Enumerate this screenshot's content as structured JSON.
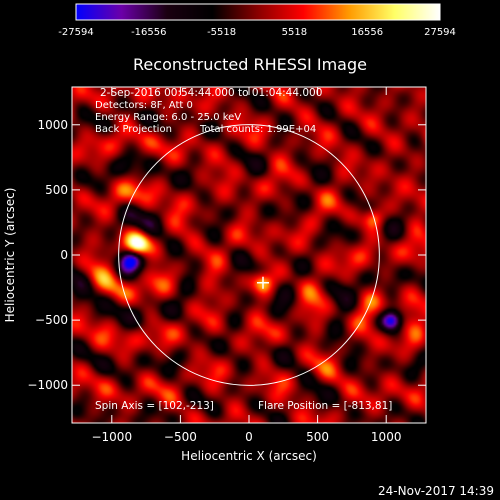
{
  "chart_data": {
    "type": "heatmap",
    "title": "Reconstructed RHESSI Image",
    "colorbar": {
      "ticks": [
        "-27594",
        "-16556",
        "-5518",
        "5518",
        "16556",
        "27594"
      ],
      "vmin": -27594,
      "vmax": 27594,
      "colormap": [
        "#0000ff",
        "#6b00a8",
        "#1a0010",
        "#000000",
        "#8a0000",
        "#ff0000",
        "#ff9a00",
        "#ffff66",
        "#ffffff"
      ]
    },
    "info": {
      "time": "2-Sep-2016 00:54:44.000 to 01:04:44.000",
      "detectors": "Detectors: 8F, Att 0",
      "energy": "Energy Range: 6.0 - 25.0 keV",
      "method": "Back Projection",
      "counts": "Total counts: 1.99E+04"
    },
    "xlabel": "Heliocentric X (arcsec)",
    "ylabel": "Heliocentric Y (arcsec)",
    "xlim": [
      -1290,
      1290
    ],
    "ylim": [
      -1290,
      1290
    ],
    "xticks": [
      -1000,
      -500,
      0,
      500,
      1000
    ],
    "yticks": [
      -1000,
      -500,
      0,
      500,
      1000
    ],
    "xtick_labels": [
      "−1000",
      "−500",
      "0",
      "500",
      "1000"
    ],
    "ytick_labels": [
      "−1000",
      "−500",
      "0",
      "500",
      "1000"
    ],
    "solar_limb_radius": 950,
    "spin_axis_text": "Spin Axis = [102,-213]",
    "flare_position_text": "Flare Position = [-813,81]",
    "spin_axis": [
      102,
      -213
    ],
    "flare_position": [
      -813,
      81
    ],
    "sources": [
      {
        "x": -813,
        "y": 81,
        "value": 27594
      },
      {
        "x": 910,
        "y": 280,
        "value": 18000
      },
      {
        "x": 102,
        "y": -213,
        "value": 16000
      },
      {
        "x": 1040,
        "y": -500,
        "value": -27594
      },
      {
        "x": -860,
        "y": -40,
        "value": -18000
      }
    ],
    "grid": false
  },
  "footer": {
    "date": "24-Nov-2017 14:39"
  }
}
